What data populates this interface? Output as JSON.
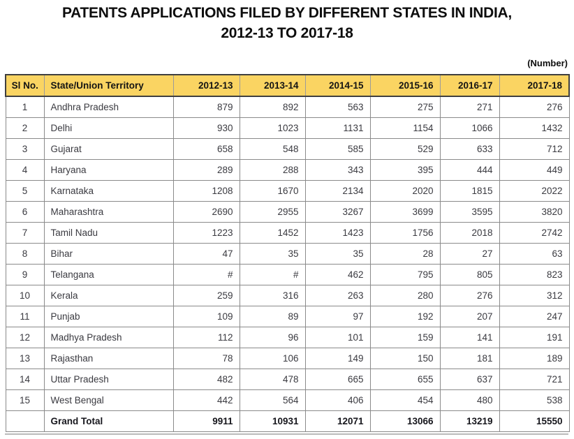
{
  "title": {
    "line1": "PATENTS APPLICATIONS FILED BY DIFFERENT STATES IN INDIA,",
    "line2": "2012-13 TO 2017-18"
  },
  "unit_label": "(Number)",
  "colors": {
    "header_bg": "#FAD462",
    "header_border": "#3F3F3F",
    "grid_border": "#8A8A8A",
    "header_text": "#141414",
    "body_text": "#3A3A40",
    "total_text": "#16161C",
    "bottom_edge": "#BBBBBB"
  },
  "chart_data": {
    "type": "table",
    "title": "PATENTS APPLICATIONS FILED BY DIFFERENT STATES IN INDIA, 2012-13 TO 2017-18",
    "unit": "(Number)",
    "columns": [
      "Sl No.",
      "State/Union Territory",
      "2012-13",
      "2013-14",
      "2014-15",
      "2015-16",
      "2016-17",
      "2017-18"
    ],
    "rows": [
      [
        "1",
        "Andhra Pradesh",
        "879",
        "892",
        "563",
        "275",
        "271",
        "276"
      ],
      [
        "2",
        "Delhi",
        "930",
        "1023",
        "1131",
        "1154",
        "1066",
        "1432"
      ],
      [
        "3",
        "Gujarat",
        "658",
        "548",
        "585",
        "529",
        "633",
        "712"
      ],
      [
        "4",
        "Haryana",
        "289",
        "288",
        "343",
        "395",
        "444",
        "449"
      ],
      [
        "5",
        "Karnataka",
        "1208",
        "1670",
        "2134",
        "2020",
        "1815",
        "2022"
      ],
      [
        "6",
        "Maharashtra",
        "2690",
        "2955",
        "3267",
        "3699",
        "3595",
        "3820"
      ],
      [
        "7",
        "Tamil Nadu",
        "1223",
        "1452",
        "1423",
        "1756",
        "2018",
        "2742"
      ],
      [
        "8",
        "Bihar",
        "47",
        "35",
        "35",
        "28",
        "27",
        "63"
      ],
      [
        "9",
        "Telangana",
        "#",
        "#",
        "462",
        "795",
        "805",
        "823"
      ],
      [
        "10",
        "Kerala",
        "259",
        "316",
        "263",
        "280",
        "276",
        "312"
      ],
      [
        "11",
        "Punjab",
        "109",
        "89",
        "97",
        "192",
        "207",
        "247"
      ],
      [
        "12",
        "Madhya Pradesh",
        "112",
        "96",
        "101",
        "159",
        "141",
        "191"
      ],
      [
        "13",
        "Rajasthan",
        "78",
        "106",
        "149",
        "150",
        "181",
        "189"
      ],
      [
        "14",
        "Uttar Pradesh",
        "482",
        "478",
        "665",
        "655",
        "637",
        "721"
      ],
      [
        "15",
        "West Bengal",
        "442",
        "564",
        "406",
        "454",
        "480",
        "538"
      ]
    ],
    "grand_total": [
      "",
      "Grand Total",
      "9911",
      "10931",
      "12071",
      "13066",
      "13219",
      "15550"
    ]
  }
}
